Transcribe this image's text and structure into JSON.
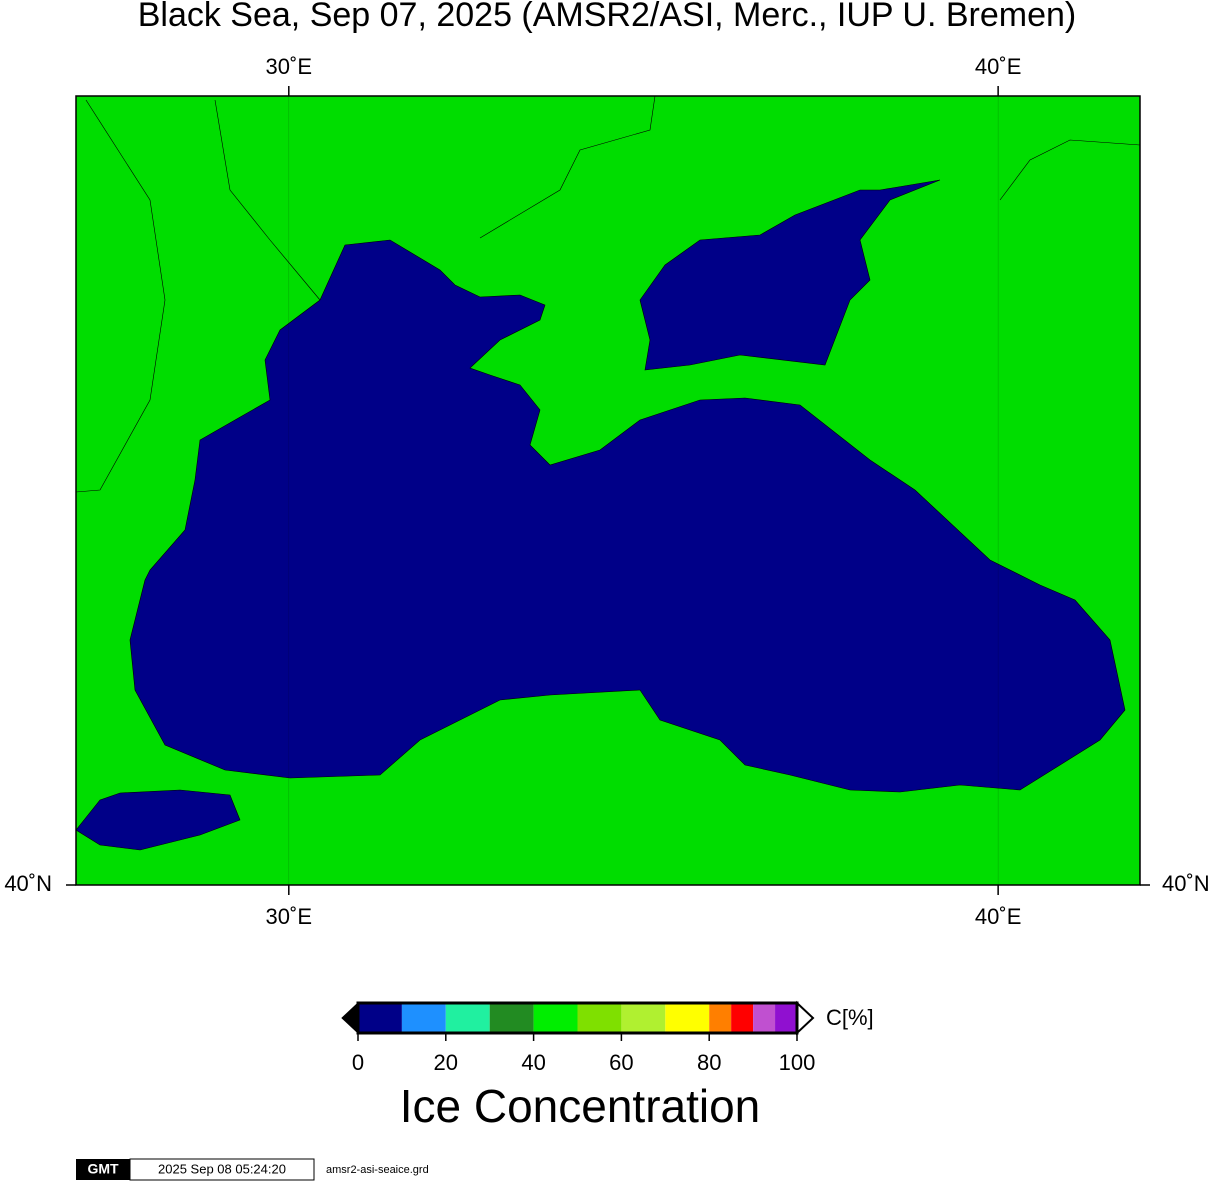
{
  "chart_data": {
    "type": "map",
    "title": "Black Sea, Sep 07, 2025 (AMSR2/ASI, Merc., IUP U. Bremen)",
    "xlim": [
      27,
      42
    ],
    "ylim": [
      40,
      47
    ],
    "xticks": [
      {
        "value": 30,
        "label": "30˚E"
      },
      {
        "value": 40,
        "label": "40˚E"
      }
    ],
    "yticks": [
      {
        "value": 40,
        "label": "40˚N"
      }
    ],
    "colorbar": {
      "label": "C[%]",
      "title": "Ice Concentration",
      "bounds": [
        0,
        10,
        20,
        30,
        40,
        50,
        60,
        70,
        80,
        85,
        90,
        95,
        100
      ],
      "colors": [
        "#000088",
        "#1e90ff",
        "#20f0a0",
        "#228b22",
        "#00ee00",
        "#7fe000",
        "#b0f030",
        "#ffff00",
        "#ff7f00",
        "#ff0000",
        "#c050d0",
        "#9010d0"
      ],
      "ticks": [
        0,
        20,
        40,
        60,
        80,
        100
      ]
    },
    "footer": {
      "logo": "GMT",
      "timestamp": "2025 Sep 08 05:24:20",
      "file": "amsr2-asi-seaice.grd"
    }
  }
}
